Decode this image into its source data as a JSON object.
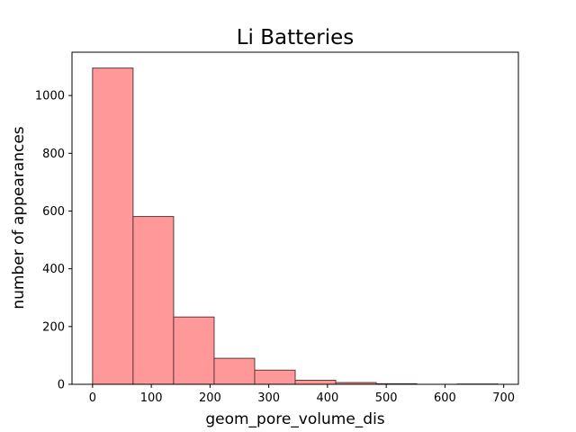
{
  "chart_data": {
    "type": "bar",
    "subtype": "histogram",
    "title": "Li Batteries",
    "xlabel": "geom_pore_volume_dis",
    "ylabel": "number of appearances",
    "bin_edges": [
      0,
      69,
      138,
      207,
      276,
      345,
      414,
      483,
      552,
      621,
      690
    ],
    "values": [
      1095,
      581,
      233,
      90,
      49,
      14,
      6,
      2,
      0,
      1
    ],
    "xlim": [
      -35,
      725
    ],
    "ylim": [
      0,
      1150
    ],
    "xticks": [
      0,
      100,
      200,
      300,
      400,
      500,
      600,
      700
    ],
    "yticks": [
      0,
      200,
      400,
      600,
      800,
      1000
    ],
    "grid": false,
    "colors": {
      "bar_fill": "#ff9999",
      "bar_edge": "#5a3a3a"
    }
  }
}
